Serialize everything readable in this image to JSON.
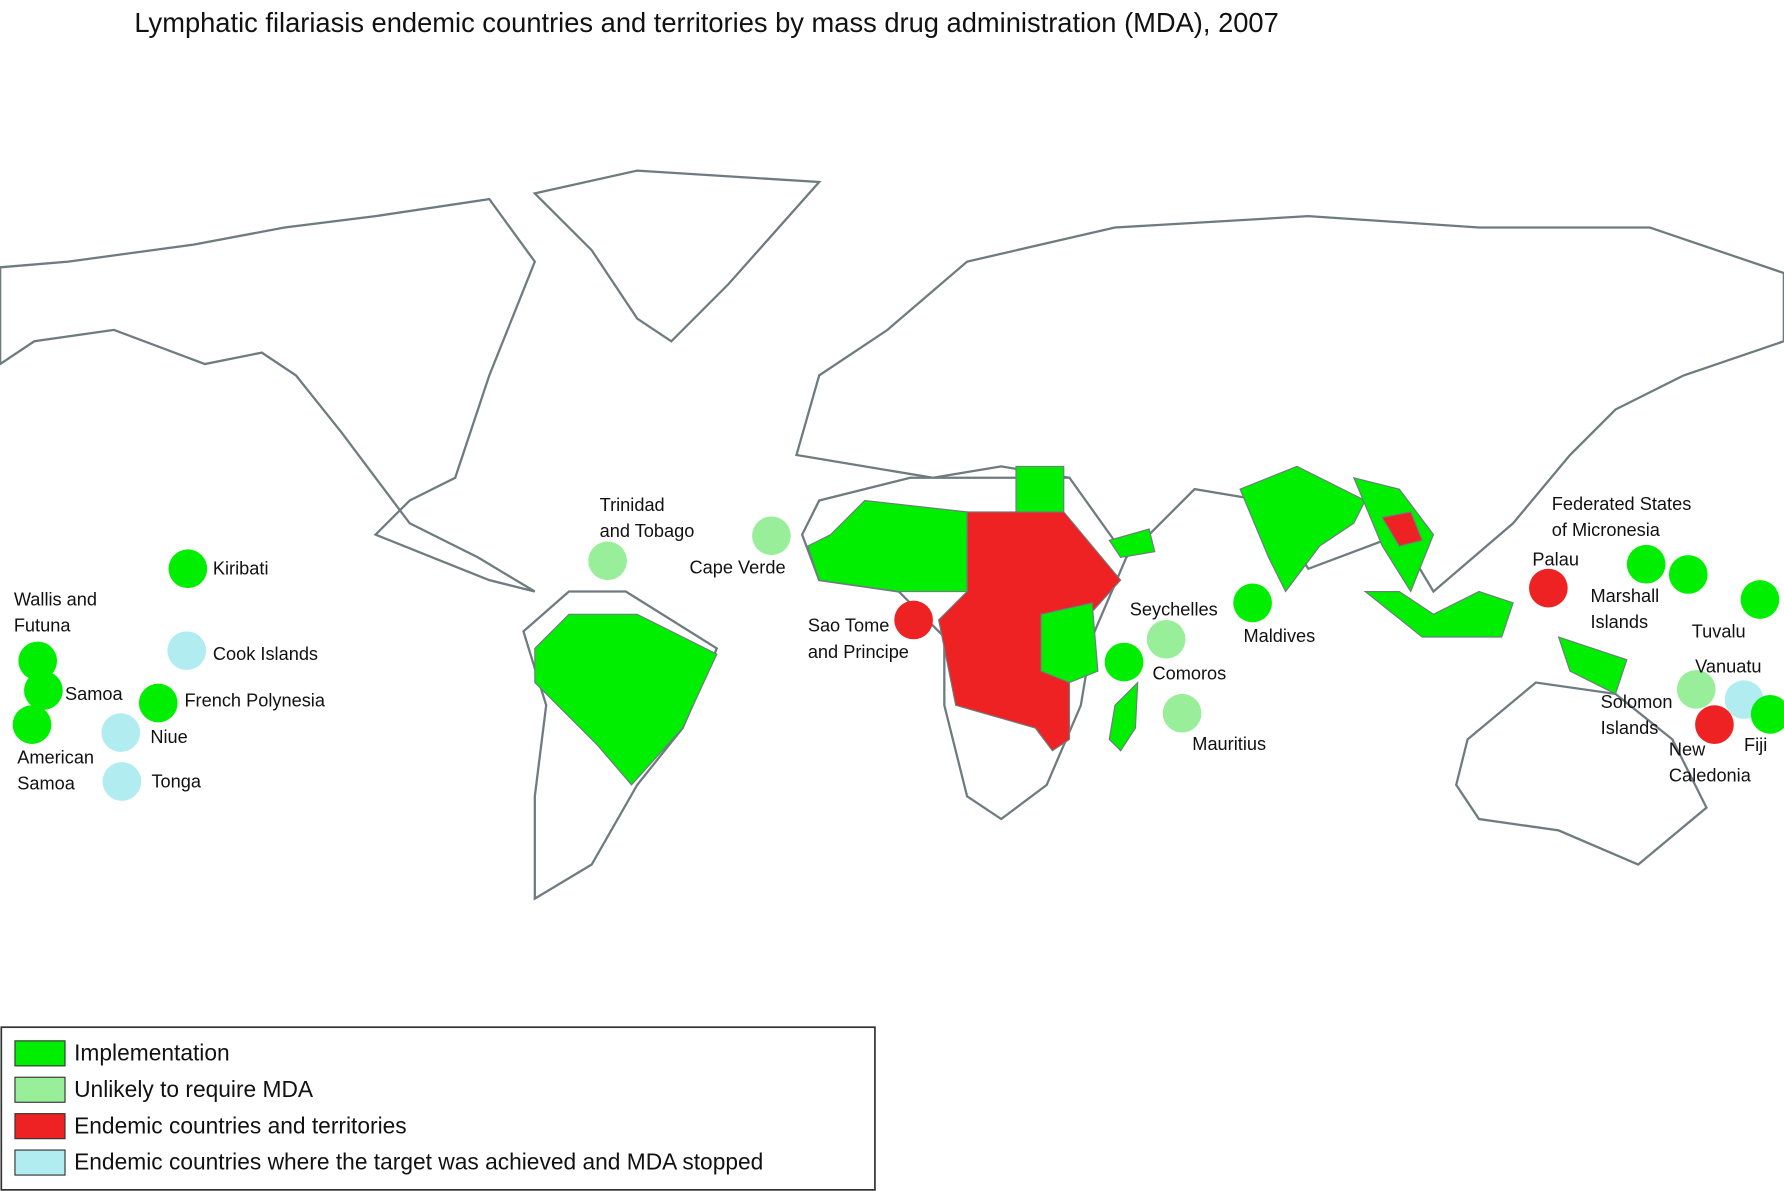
{
  "title": "Lymphatic filariasis endemic countries and territories by mass drug administration (MDA), 2007",
  "legend": [
    {
      "label": "Implementation",
      "color": "#00ee00"
    },
    {
      "label": "Unlikely to require MDA",
      "color": "#99ee99"
    },
    {
      "label": "Endemic countries and territories",
      "color": "#ee2222"
    },
    {
      "label": "Endemic countries where the target was achieved and MDA stopped",
      "color": "#b0ecf0"
    }
  ],
  "markers": [
    {
      "lines": [
        "Kiribati"
      ],
      "category": "Implementation"
    },
    {
      "lines": [
        "Wallis and",
        "Futuna"
      ],
      "category": "Implementation"
    },
    {
      "lines": [
        "Samoa"
      ],
      "category": "Implementation"
    },
    {
      "lines": [
        "American",
        "Samoa"
      ],
      "category": "Implementation"
    },
    {
      "lines": [
        "Cook Islands"
      ],
      "category": "Endemic countries where the target was achieved and MDA stopped"
    },
    {
      "lines": [
        "French Polynesia"
      ],
      "category": "Implementation"
    },
    {
      "lines": [
        "Niue"
      ],
      "category": "Endemic countries where the target was achieved and MDA stopped"
    },
    {
      "lines": [
        "Tonga"
      ],
      "category": "Endemic countries where the target was achieved and MDA stopped"
    },
    {
      "lines": [
        "Trinidad",
        "and Tobago"
      ],
      "category": "Unlikely to require MDA"
    },
    {
      "lines": [
        "Cape Verde"
      ],
      "category": "Unlikely to require MDA"
    },
    {
      "lines": [
        "Sao Tome",
        "and Principe"
      ],
      "category": "Endemic countries and territories"
    },
    {
      "lines": [
        "Seychelles"
      ],
      "category": "Unlikely to require MDA"
    },
    {
      "lines": [
        "Comoros"
      ],
      "category": "Implementation"
    },
    {
      "lines": [
        "Mauritius"
      ],
      "category": "Unlikely to require MDA"
    },
    {
      "lines": [
        "Maldives"
      ],
      "category": "Implementation"
    },
    {
      "lines": [
        "Palau"
      ],
      "category": "Endemic countries and territories"
    },
    {
      "lines": [
        "Federated States",
        "of Micronesia"
      ],
      "category": "Implementation"
    },
    {
      "lines": [
        "Marshall",
        "Islands"
      ],
      "category": "Implementation"
    },
    {
      "lines": [
        "Tuvalu"
      ],
      "category": "Implementation"
    },
    {
      "lines": [
        "Solomon",
        "Islands"
      ],
      "category": "Unlikely to require MDA"
    },
    {
      "lines": [
        "Vanuatu"
      ],
      "category": "Endemic countries where the target was achieved and MDA stopped"
    },
    {
      "lines": [
        "New",
        "Caledonia"
      ],
      "category": "Endemic countries and territories"
    },
    {
      "lines": [
        "Fiji"
      ],
      "category": "Implementation"
    }
  ]
}
